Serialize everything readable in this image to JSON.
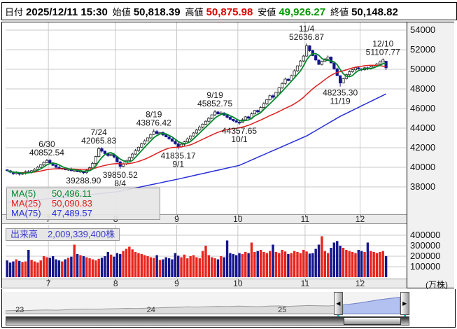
{
  "header": {
    "items": [
      {
        "label": "日付",
        "value": "2025/12/11 15:30",
        "color": "#000000"
      },
      {
        "label": "始値",
        "value": "50,818.39",
        "color": "#000000"
      },
      {
        "label": "高値",
        "value": "50,875.98",
        "color": "#dd0000"
      },
      {
        "label": "安値",
        "value": "49,926.27",
        "color": "#009900"
      },
      {
        "label": "終値",
        "value": "50,148.82",
        "color": "#000000"
      }
    ]
  },
  "colors": {
    "candle_up_fill": "#ffffff",
    "candle_up_stroke": "#222222",
    "candle_down": "#14148c",
    "ma5": "#00882a",
    "ma25": "#e02020",
    "ma75": "#2830d8",
    "vol_up": "#e8241c",
    "vol_down": "#16168c",
    "grid": "#c9c9c9",
    "annotation": "#1a1a1a",
    "overview_line": "#9a9a9a",
    "overview_fill": "#dcdcdc",
    "selection_fill": "#b3c1f0",
    "selection_line": "#7382cc",
    "volume_label": "#3b3bcc"
  },
  "chart_data": {
    "main": {
      "type": "candlestick",
      "y_ticks": [
        54000,
        52000,
        50000,
        48000,
        46000,
        44000,
        42000,
        40000,
        38000
      ],
      "month_labels": [
        "7",
        "8",
        "9",
        "10",
        "11",
        "12"
      ],
      "month_start_slots": [
        14,
        36,
        56,
        76,
        98,
        116
      ],
      "total_slots": 131,
      "first_open": 39750,
      "closes": [
        39650,
        39500,
        39350,
        39450,
        39300,
        39400,
        39550,
        39500,
        39650,
        39800,
        40000,
        40250,
        40500,
        40700,
        40450,
        40200,
        40000,
        39850,
        39900,
        39750,
        39800,
        39650,
        39700,
        39550,
        39600,
        39450,
        39700,
        39950,
        40400,
        41100,
        41900,
        41650,
        41400,
        41200,
        41300,
        41050,
        40550,
        40100,
        40350,
        40700,
        41000,
        41350,
        41700,
        42050,
        42400,
        42700,
        43000,
        43350,
        43650,
        43450,
        43550,
        43300,
        43100,
        42900,
        42650,
        42400,
        42100,
        42350,
        42600,
        42900,
        43200,
        43500,
        43800,
        44100,
        44400,
        44700,
        45000,
        45350,
        45650,
        45450,
        45550,
        45300,
        45100,
        44900,
        44750,
        44600,
        44550,
        44850,
        45150,
        45000,
        45450,
        45800,
        45650,
        46100,
        46500,
        46900,
        47300,
        47150,
        47650,
        48100,
        48550,
        49000,
        48850,
        49350,
        49850,
        50350,
        50850,
        51350,
        52400,
        51900,
        51400,
        50950,
        50500,
        50800,
        51050,
        51250,
        50650,
        50050,
        49350,
        48600,
        49050,
        49450,
        49750,
        49950,
        50150,
        50050,
        49950,
        50150,
        50050,
        50250,
        50400,
        50550,
        50750,
        50950,
        50148.82
      ],
      "pivot_highs": {
        "13": 40852.54,
        "30": 42065.83,
        "48": 43876.42,
        "68": 45852.75,
        "98": 52636.87,
        "123": 51107.77
      },
      "pivot_lows": {
        "25": 39288.9,
        "37": 39850.52,
        "56": 41835.17,
        "76": 44357.65,
        "109": 48235.3
      },
      "last_candle": {
        "open": 50818.39,
        "high": 50875.98,
        "low": 49926.27,
        "close": 50148.82
      },
      "annotations": [
        {
          "slot": 13,
          "date": "6/30",
          "value": "40852.54",
          "side": "above"
        },
        {
          "slot": 25,
          "date": "",
          "value": "39288.90",
          "side": "below"
        },
        {
          "slot": 30,
          "date": "7/24",
          "value": "42065.83",
          "side": "above"
        },
        {
          "slot": 37,
          "date": "8/4",
          "value": "39850.52",
          "side": "below"
        },
        {
          "slot": 48,
          "date": "8/19",
          "value": "43876.42",
          "side": "above"
        },
        {
          "slot": 56,
          "date": "9/1",
          "value": "41835.17",
          "side": "below"
        },
        {
          "slot": 68,
          "date": "9/19",
          "value": "45852.75",
          "side": "above"
        },
        {
          "slot": 76,
          "date": "10/1",
          "value": "44357.65",
          "side": "below"
        },
        {
          "slot": 98,
          "date": "11/4",
          "value": "52636.87",
          "side": "above"
        },
        {
          "slot": 109,
          "date": "11/19",
          "value": "48235.30",
          "side": "below"
        },
        {
          "slot": 123,
          "date": "12/10",
          "value": "51107.77",
          "side": "above"
        }
      ],
      "ma75_anchors": [
        [
          0,
          36400
        ],
        [
          14,
          36800
        ],
        [
          36,
          37500
        ],
        [
          56,
          38800
        ],
        [
          76,
          40200
        ],
        [
          98,
          43200
        ],
        [
          109,
          45200
        ],
        [
          124,
          47489.57
        ]
      ],
      "legend": [
        {
          "label": "MA(5)",
          "value": "50,496.11",
          "color": "#00882a"
        },
        {
          "label": "MA(25)",
          "value": "50,090.83",
          "color": "#e02020"
        },
        {
          "label": "MA(75)",
          "value": "47,489.57",
          "color": "#2830d8"
        }
      ]
    },
    "volume": {
      "type": "bar",
      "label": "出来高",
      "total": "2,009,339,400株",
      "y_ticks": [
        400000,
        300000,
        200000,
        100000
      ],
      "unit": "(万株)",
      "values": [
        160000,
        140000,
        150000,
        170000,
        155000,
        145000,
        150000,
        260000,
        165000,
        150000,
        140000,
        160000,
        200000,
        190000,
        185000,
        200000,
        170000,
        160000,
        150000,
        170000,
        185000,
        195000,
        310000,
        220000,
        210000,
        200000,
        190000,
        180000,
        170000,
        160000,
        175000,
        185000,
        200000,
        240000,
        215000,
        195000,
        230000,
        220000,
        250000,
        270000,
        290000,
        265000,
        240000,
        230000,
        220000,
        210000,
        200000,
        190000,
        185000,
        210000,
        165000,
        170000,
        190000,
        180000,
        170000,
        230000,
        205000,
        190000,
        215000,
        180000,
        200000,
        210000,
        190000,
        180000,
        250000,
        300000,
        210000,
        190000,
        180000,
        170000,
        200000,
        190000,
        350000,
        230000,
        220000,
        210000,
        230000,
        220000,
        240000,
        230000,
        330000,
        240000,
        250000,
        260000,
        240000,
        230000,
        250000,
        310000,
        240000,
        230000,
        260000,
        245000,
        220000,
        230000,
        250000,
        240000,
        230000,
        260000,
        245000,
        225000,
        230000,
        270000,
        310000,
        390000,
        250000,
        230000,
        280000,
        330000,
        345000,
        300000,
        280000,
        260000,
        250000,
        240000,
        230000,
        260000,
        250000,
        240000,
        330000,
        250000,
        240000,
        230000,
        240000,
        250000,
        201000
      ]
    },
    "overview": {
      "type": "area",
      "years": [
        {
          "label": "23",
          "x": 0.035
        },
        {
          "label": "24",
          "x": 0.36
        },
        {
          "label": "25",
          "x": 0.685
        }
      ],
      "selection": [
        0.835,
        0.977
      ],
      "points": [
        [
          0.0,
          0.14
        ],
        [
          0.025,
          0.16
        ],
        [
          0.05,
          0.15
        ],
        [
          0.075,
          0.17
        ],
        [
          0.1,
          0.18
        ],
        [
          0.125,
          0.17
        ],
        [
          0.15,
          0.19
        ],
        [
          0.175,
          0.21
        ],
        [
          0.2,
          0.22
        ],
        [
          0.225,
          0.21
        ],
        [
          0.25,
          0.23
        ],
        [
          0.275,
          0.24
        ],
        [
          0.3,
          0.26
        ],
        [
          0.325,
          0.25
        ],
        [
          0.35,
          0.27
        ],
        [
          0.375,
          0.28
        ],
        [
          0.4,
          0.3
        ],
        [
          0.425,
          0.31
        ],
        [
          0.45,
          0.33
        ],
        [
          0.475,
          0.32
        ],
        [
          0.5,
          0.34
        ],
        [
          0.525,
          0.36
        ],
        [
          0.55,
          0.35
        ],
        [
          0.575,
          0.37
        ],
        [
          0.6,
          0.36
        ],
        [
          0.625,
          0.34
        ],
        [
          0.65,
          0.37
        ],
        [
          0.675,
          0.38
        ],
        [
          0.7,
          0.36
        ],
        [
          0.725,
          0.38
        ],
        [
          0.75,
          0.4
        ],
        [
          0.775,
          0.39
        ],
        [
          0.8,
          0.38
        ],
        [
          0.825,
          0.41
        ],
        [
          0.85,
          0.46
        ],
        [
          0.875,
          0.52
        ],
        [
          0.9,
          0.6
        ],
        [
          0.925,
          0.68
        ],
        [
          0.95,
          0.74
        ],
        [
          0.975,
          0.8
        ],
        [
          1.0,
          0.82
        ]
      ],
      "left_icon": "◀",
      "right_icon": "▶"
    }
  }
}
